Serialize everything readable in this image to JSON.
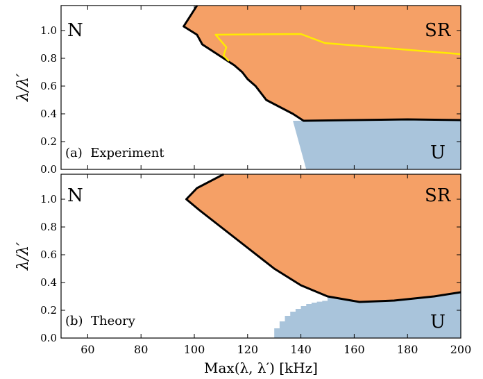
{
  "chart_data": [
    {
      "type": "area",
      "panel_label": "(a)  Experiment",
      "region_labels": {
        "normal": "N",
        "superradiant": "SR",
        "unstable": "U"
      },
      "ylabel": "λ/λ′",
      "xlim": [
        50,
        200
      ],
      "ylim": [
        0,
        1.18
      ],
      "x_ticks": [
        60,
        80,
        100,
        120,
        140,
        160,
        180,
        200
      ],
      "y_ticks": [
        "0.0",
        "0.2",
        "0.4",
        "0.6",
        "0.8",
        "1.0"
      ],
      "grid": false,
      "colors": {
        "sr": "#F5A066",
        "u": "#A9C4DB",
        "boundary": "#000000",
        "extra": "#FFEB00"
      },
      "sr_boundary": [
        [
          101,
          1.18
        ],
        [
          96,
          1.03
        ],
        [
          101,
          0.97
        ],
        [
          103,
          0.9
        ],
        [
          107,
          0.85
        ],
        [
          111,
          0.8
        ],
        [
          115,
          0.75
        ],
        [
          118,
          0.7
        ],
        [
          120,
          0.65
        ],
        [
          123,
          0.6
        ],
        [
          125,
          0.55
        ],
        [
          127,
          0.5
        ],
        [
          132,
          0.45
        ],
        [
          137,
          0.4
        ],
        [
          141,
          0.35
        ],
        [
          160,
          0.355
        ],
        [
          180,
          0.36
        ],
        [
          200,
          0.355
        ]
      ],
      "u_boundary": [
        [
          137,
          0.35
        ],
        [
          200,
          0.355
        ],
        [
          200,
          0
        ],
        [
          142,
          0
        ]
      ],
      "yellow_line": [
        [
          113,
          0.78
        ],
        [
          111,
          0.82
        ],
        [
          112,
          0.88
        ],
        [
          108,
          0.97
        ],
        [
          140,
          0.975
        ],
        [
          149,
          0.91
        ],
        [
          200,
          0.83
        ]
      ]
    },
    {
      "type": "area",
      "panel_label": "(b)  Theory",
      "region_labels": {
        "normal": "N",
        "superradiant": "SR",
        "unstable": "U"
      },
      "xlabel": "Max(λ, λ′) [kHz]",
      "ylabel": "λ/λ′",
      "xlim": [
        50,
        200
      ],
      "ylim": [
        0,
        1.18
      ],
      "x_ticks": [
        60,
        80,
        100,
        120,
        140,
        160,
        180,
        200
      ],
      "y_ticks": [
        "0.0",
        "0.2",
        "0.4",
        "0.6",
        "0.8",
        "1.0"
      ],
      "grid": false,
      "colors": {
        "sr": "#F5A066",
        "u": "#A9C4DB",
        "boundary": "#000000"
      },
      "sr_boundary": [
        [
          111,
          1.18
        ],
        [
          101,
          1.08
        ],
        [
          97,
          1.0
        ],
        [
          102,
          0.92
        ],
        [
          110,
          0.8
        ],
        [
          120,
          0.65
        ],
        [
          130,
          0.5
        ],
        [
          140,
          0.38
        ],
        [
          150,
          0.3
        ],
        [
          162,
          0.26
        ],
        [
          175,
          0.27
        ],
        [
          190,
          0.3
        ],
        [
          200,
          0.33
        ]
      ],
      "u_steps": [
        [
          130,
          0.07
        ],
        [
          132,
          0.12
        ],
        [
          134,
          0.16
        ],
        [
          136,
          0.19
        ],
        [
          138,
          0.21
        ],
        [
          140,
          0.23
        ],
        [
          142,
          0.245
        ],
        [
          144,
          0.255
        ],
        [
          146,
          0.262
        ],
        [
          148,
          0.268
        ]
      ]
    }
  ]
}
